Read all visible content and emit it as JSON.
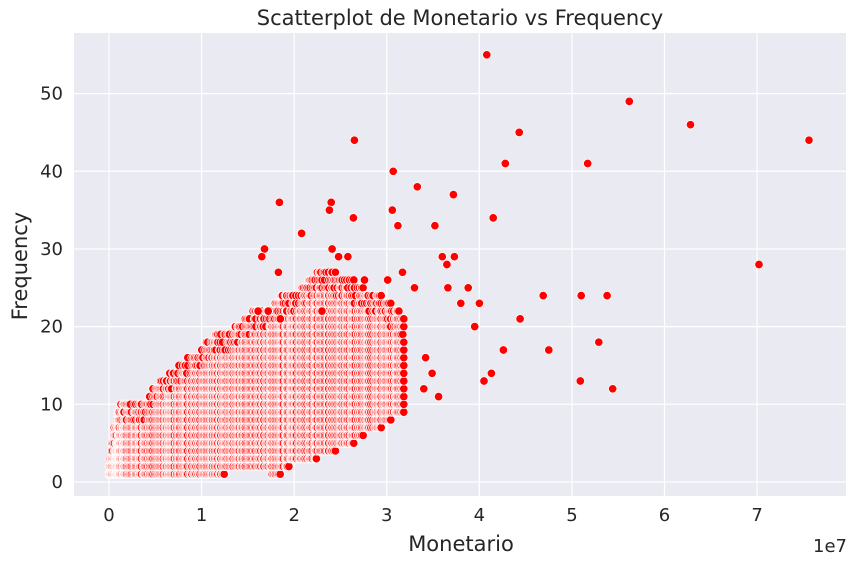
{
  "chart_data": {
    "type": "scatter",
    "title": "Scatterplot de Monetario vs Frequency",
    "xlabel": "Monetario",
    "ylabel": "Frequency",
    "x_offset_label": "1e7",
    "x_ticks": [
      0,
      1,
      2,
      3,
      4,
      5,
      6,
      7
    ],
    "x_tick_labels": [
      "0",
      "1",
      "2",
      "3",
      "4",
      "5",
      "6",
      "7"
    ],
    "y_ticks": [
      0,
      10,
      20,
      30,
      40,
      50
    ],
    "y_tick_labels": [
      "0",
      "10",
      "20",
      "30",
      "40",
      "50"
    ],
    "xlim": [
      -0.378,
      7.96
    ],
    "ylim": [
      -1.8,
      57.8
    ],
    "grid": true,
    "background": "#eaeaf2",
    "grid_color": "#ffffff",
    "point_color": "#ff0000",
    "point_edge": "#ffffff",
    "series": [
      {
        "x": [
          4.08,
          5.62,
          6.28,
          7.56,
          7.02,
          4.43,
          4.28,
          5.17,
          2.65,
          3.07,
          3.33,
          3.72,
          1.84,
          2.4,
          2.38,
          2.64,
          3.12,
          2.08,
          3.52,
          4.15,
          3.73,
          3.6,
          3.66,
          3.56,
          4.75,
          5.09,
          5.44,
          5.29,
          4.69,
          4.44,
          4.26,
          4.13,
          4.05,
          3.01,
          2.76,
          1.83,
          3.17,
          3.06,
          3.65,
          2.41,
          1.68,
          1.65,
          2.48,
          3.3,
          3.8,
          5.1,
          5.38,
          3.88,
          4.0,
          3.95,
          3.42,
          3.49,
          3.4,
          1.72,
          1.85,
          1.61,
          2.3,
          2.58
        ],
        "y": [
          55,
          49,
          46,
          44,
          28,
          45,
          41,
          41,
          44,
          40,
          38,
          37,
          36,
          36,
          35,
          34,
          33,
          32,
          33,
          34,
          29,
          29,
          25,
          11,
          17,
          13,
          12,
          18,
          24,
          21,
          17,
          14,
          13,
          26,
          26,
          27,
          27,
          35,
          28,
          30,
          30,
          29,
          29,
          25,
          23,
          24,
          24,
          25,
          23,
          20,
          16,
          14,
          12,
          22,
          21,
          22,
          22,
          29
        ]
      },
      {
        "name": "",
        "dense_region_y_by_x": [
          [
            0.0,
            1,
            2
          ],
          [
            0.05,
            1,
            6
          ],
          [
            0.1,
            1,
            9
          ],
          [
            0.15,
            1,
            10
          ],
          [
            0.2,
            1,
            10
          ],
          [
            0.3,
            1,
            10
          ],
          [
            0.4,
            1,
            10
          ],
          [
            0.5,
            1,
            12
          ],
          [
            0.6,
            1,
            13
          ],
          [
            0.7,
            1,
            14
          ],
          [
            0.8,
            1,
            15
          ],
          [
            0.9,
            1,
            16
          ],
          [
            1.0,
            1,
            17
          ],
          [
            1.1,
            1,
            18
          ],
          [
            1.2,
            1,
            19
          ],
          [
            1.3,
            2,
            19
          ],
          [
            1.4,
            2,
            20
          ],
          [
            1.5,
            2,
            21
          ],
          [
            1.6,
            2,
            22
          ],
          [
            1.7,
            2,
            22
          ],
          [
            1.8,
            1,
            23
          ],
          [
            1.9,
            2,
            24
          ],
          [
            2.0,
            3,
            24
          ],
          [
            2.1,
            3,
            25
          ],
          [
            2.2,
            3,
            26
          ],
          [
            2.3,
            4,
            27
          ],
          [
            2.4,
            4,
            27
          ],
          [
            2.5,
            5,
            26
          ],
          [
            2.6,
            5,
            26
          ],
          [
            2.7,
            6,
            25
          ],
          [
            2.8,
            7,
            24
          ],
          [
            2.9,
            7,
            24
          ],
          [
            3.0,
            8,
            23
          ],
          [
            3.1,
            9,
            22
          ],
          [
            3.2,
            9,
            21
          ]
        ]
      }
    ]
  }
}
